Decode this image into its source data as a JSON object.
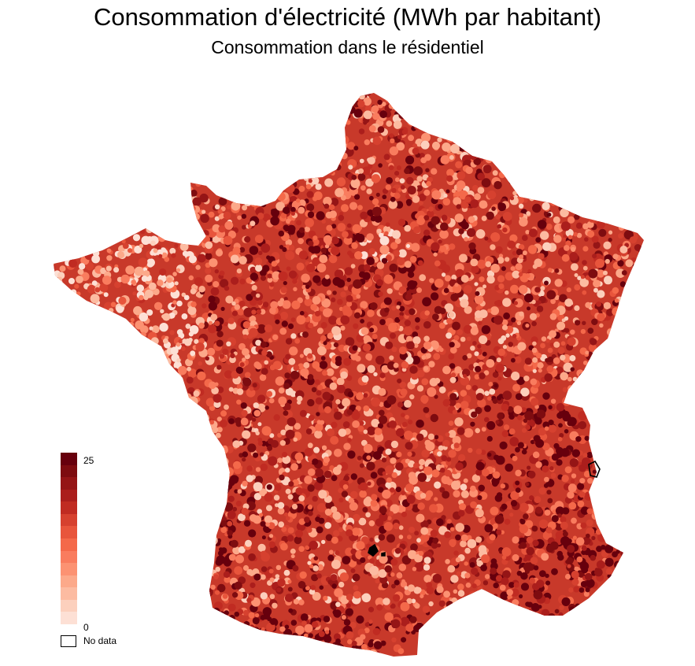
{
  "title": "Consommation d'électricité (MWh par habitant)",
  "subtitle": "Consommation dans le résidentiel",
  "map": {
    "region": "France",
    "palette": [
      "#fde0d5",
      "#fcd0bd",
      "#fcbba1",
      "#fca98a",
      "#fc9272",
      "#f97c5e",
      "#f4694a",
      "#e8553c",
      "#d6412f",
      "#c02b22",
      "#ab1e1c",
      "#951516",
      "#7e0c10",
      "#67000d"
    ]
  },
  "legend": {
    "max_label": "25",
    "min_label": "0",
    "max_value": 25,
    "min_value": 0,
    "nodata_label": "No data"
  }
}
